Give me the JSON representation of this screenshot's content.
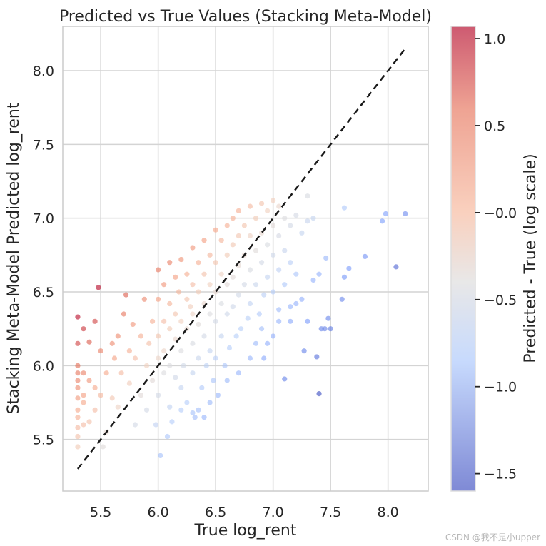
{
  "chart_data": {
    "type": "scatter",
    "title": "Predicted vs True Values (Stacking Meta-Model)",
    "xlabel": "True log_rent",
    "ylabel": "Stacking Meta-Model Predicted log_rent",
    "xlim": [
      5.17,
      8.35
    ],
    "ylim": [
      5.15,
      8.3
    ],
    "x_ticks": [
      5.5,
      6.0,
      6.5,
      7.0,
      7.5,
      8.0
    ],
    "x_tick_labels": [
      "5.5",
      "6.0",
      "6.5",
      "7.0",
      "7.5",
      "8.0"
    ],
    "y_ticks": [
      5.5,
      6.0,
      6.5,
      7.0,
      7.5,
      8.0
    ],
    "y_tick_labels": [
      "5.5",
      "6.0",
      "6.5",
      "7.0",
      "7.5",
      "8.0"
    ],
    "grid": true,
    "colormap": "coolwarm",
    "reference_line": {
      "style": "dashed",
      "color": "#1a1a1a",
      "x": [
        5.3,
        8.15
      ],
      "y": [
        5.3,
        8.15
      ]
    },
    "colorbar": {
      "label": "Predicted - True (log scale)",
      "range": [
        -1.6,
        1.07
      ],
      "ticks": [
        1.0,
        0.5,
        0.0,
        -0.5,
        -1.0,
        -1.5
      ],
      "tick_labels": [
        "1.0",
        "0.5",
        "−0.0",
        "−0.5",
        "−1.0",
        "−1.5"
      ]
    },
    "points": [
      [
        5.3,
        6.33
      ],
      [
        5.3,
        5.95
      ],
      [
        5.3,
        5.85
      ],
      [
        5.3,
        5.78
      ],
      [
        5.3,
        5.65
      ],
      [
        5.3,
        5.58
      ],
      [
        5.3,
        5.52
      ],
      [
        5.3,
        5.45
      ],
      [
        5.3,
        5.9
      ],
      [
        5.3,
        5.7
      ],
      [
        5.3,
        6.15
      ],
      [
        5.3,
        6.0
      ],
      [
        5.35,
        6.25
      ],
      [
        5.35,
        5.95
      ],
      [
        5.35,
        5.8
      ],
      [
        5.35,
        5.75
      ],
      [
        5.35,
        5.6
      ],
      [
        5.4,
        6.16
      ],
      [
        5.4,
        5.9
      ],
      [
        5.4,
        5.62
      ],
      [
        5.45,
        5.85
      ],
      [
        5.45,
        5.7
      ],
      [
        5.48,
        6.53
      ],
      [
        5.45,
        6.3
      ],
      [
        5.5,
        5.8
      ],
      [
        5.5,
        6.1
      ],
      [
        5.52,
        5.45
      ],
      [
        5.55,
        5.55
      ],
      [
        5.55,
        5.95
      ],
      [
        5.6,
        6.15
      ],
      [
        5.6,
        5.78
      ],
      [
        5.62,
        6.05
      ],
      [
        5.65,
        6.2
      ],
      [
        5.65,
        5.72
      ],
      [
        5.68,
        5.95
      ],
      [
        5.7,
        6.35
      ],
      [
        5.72,
        6.48
      ],
      [
        5.75,
        6.1
      ],
      [
        5.75,
        5.88
      ],
      [
        5.78,
        6.28
      ],
      [
        5.8,
        5.6
      ],
      [
        5.8,
        6.05
      ],
      [
        5.85,
        6.2
      ],
      [
        5.85,
        5.8
      ],
      [
        5.88,
        6.45
      ],
      [
        5.9,
        5.7
      ],
      [
        5.9,
        6.0
      ],
      [
        5.92,
        6.15
      ],
      [
        5.95,
        6.3
      ],
      [
        5.95,
        5.9
      ],
      [
        5.98,
        5.6
      ],
      [
        6.0,
        6.65
      ],
      [
        6.0,
        6.45
      ],
      [
        6.0,
        6.2
      ],
      [
        6.0,
        6.05
      ],
      [
        6.0,
        5.8
      ],
      [
        6.02,
        5.39
      ],
      [
        6.05,
        6.55
      ],
      [
        6.05,
        6.3
      ],
      [
        6.05,
        6.1
      ],
      [
        6.05,
        5.95
      ],
      [
        6.08,
        5.52
      ],
      [
        6.1,
        6.7
      ],
      [
        6.1,
        6.42
      ],
      [
        6.1,
        6.25
      ],
      [
        6.1,
        6.0
      ],
      [
        6.1,
        5.72
      ],
      [
        6.12,
        5.62
      ],
      [
        6.15,
        6.6
      ],
      [
        6.15,
        6.35
      ],
      [
        6.15,
        6.18
      ],
      [
        6.15,
        5.92
      ],
      [
        6.18,
        6.5
      ],
      [
        6.2,
        6.72
      ],
      [
        6.2,
        6.3
      ],
      [
        6.2,
        6.1
      ],
      [
        6.2,
        5.85
      ],
      [
        6.22,
        6.0
      ],
      [
        6.25,
        6.62
      ],
      [
        6.25,
        6.45
      ],
      [
        6.25,
        6.25
      ],
      [
        6.25,
        5.75
      ],
      [
        6.28,
        6.4
      ],
      [
        6.3,
        6.8
      ],
      [
        6.3,
        6.55
      ],
      [
        6.3,
        6.35
      ],
      [
        6.3,
        6.15
      ],
      [
        6.3,
        5.95
      ],
      [
        6.32,
        5.65
      ],
      [
        6.35,
        6.7
      ],
      [
        6.35,
        6.5
      ],
      [
        6.35,
        6.28
      ],
      [
        6.35,
        6.05
      ],
      [
        6.38,
        5.85
      ],
      [
        6.4,
        6.85
      ],
      [
        6.4,
        6.62
      ],
      [
        6.4,
        6.42
      ],
      [
        6.4,
        6.2
      ],
      [
        6.42,
        6.0
      ],
      [
        6.45,
        6.75
      ],
      [
        6.45,
        6.55
      ],
      [
        6.45,
        6.35
      ],
      [
        6.45,
        6.1
      ],
      [
        6.48,
        5.9
      ],
      [
        6.5,
        6.92
      ],
      [
        6.5,
        6.7
      ],
      [
        6.5,
        6.5
      ],
      [
        6.5,
        6.3
      ],
      [
        6.5,
        6.05
      ],
      [
        6.52,
        5.8
      ],
      [
        6.55,
        6.85
      ],
      [
        6.55,
        6.62
      ],
      [
        6.55,
        6.42
      ],
      [
        6.55,
        6.2
      ],
      [
        6.58,
        6.0
      ],
      [
        6.6,
        6.95
      ],
      [
        6.6,
        6.75
      ],
      [
        6.6,
        6.55
      ],
      [
        6.6,
        6.35
      ],
      [
        6.62,
        6.12
      ],
      [
        6.65,
        7.0
      ],
      [
        6.65,
        6.82
      ],
      [
        6.65,
        6.6
      ],
      [
        6.65,
        6.4
      ],
      [
        6.68,
        6.2
      ],
      [
        6.7,
        7.05
      ],
      [
        6.7,
        6.88
      ],
      [
        6.7,
        6.68
      ],
      [
        6.7,
        6.48
      ],
      [
        6.72,
        6.25
      ],
      [
        6.75,
        6.95
      ],
      [
        6.75,
        6.75
      ],
      [
        6.75,
        6.55
      ],
      [
        6.78,
        6.32
      ],
      [
        6.8,
        7.08
      ],
      [
        6.8,
        6.88
      ],
      [
        6.8,
        6.65
      ],
      [
        6.8,
        6.42
      ],
      [
        6.85,
        7.0
      ],
      [
        6.85,
        6.78
      ],
      [
        6.85,
        6.55
      ],
      [
        6.88,
        6.35
      ],
      [
        6.9,
        7.1
      ],
      [
        6.9,
        6.9
      ],
      [
        6.9,
        6.7
      ],
      [
        6.92,
        6.48
      ],
      [
        6.95,
        7.05
      ],
      [
        6.95,
        6.82
      ],
      [
        6.95,
        6.6
      ],
      [
        7.0,
        7.12
      ],
      [
        7.0,
        6.95
      ],
      [
        7.0,
        6.75
      ],
      [
        7.0,
        6.5
      ],
      [
        7.05,
        7.08
      ],
      [
        7.05,
        6.88
      ],
      [
        7.05,
        6.65
      ],
      [
        7.1,
        7.0
      ],
      [
        7.1,
        6.78
      ],
      [
        7.1,
        6.55
      ],
      [
        7.15,
        6.95
      ],
      [
        7.15,
        6.7
      ],
      [
        7.2,
        7.02
      ],
      [
        7.2,
        6.62
      ],
      [
        7.25,
        6.9
      ],
      [
        7.3,
        7.15
      ],
      [
        7.3,
        6.98
      ],
      [
        7.35,
        7.0
      ],
      [
        7.2,
        6.42
      ],
      [
        7.15,
        6.3
      ],
      [
        7.05,
        6.3
      ],
      [
        7.0,
        6.2
      ],
      [
        6.9,
        6.25
      ],
      [
        6.95,
        6.15
      ],
      [
        6.85,
        6.15
      ],
      [
        6.8,
        6.05
      ],
      [
        6.7,
        5.95
      ],
      [
        6.6,
        5.9
      ],
      [
        6.45,
        5.75
      ],
      [
        6.35,
        5.7
      ],
      [
        6.3,
        5.68
      ],
      [
        6.2,
        5.7
      ],
      [
        6.4,
        5.65
      ],
      [
        7.1,
        5.91
      ],
      [
        6.92,
        6.05
      ],
      [
        7.25,
        6.45
      ],
      [
        7.3,
        6.3
      ],
      [
        7.38,
        6.06
      ],
      [
        7.42,
        6.25
      ],
      [
        7.45,
        6.25
      ],
      [
        7.4,
        5.81
      ],
      [
        7.5,
        6.25
      ],
      [
        7.48,
        6.32
      ],
      [
        7.46,
        6.73
      ],
      [
        7.4,
        6.62
      ],
      [
        7.35,
        6.58
      ],
      [
        7.6,
        6.45
      ],
      [
        7.62,
        6.6
      ],
      [
        7.66,
        6.66
      ],
      [
        7.8,
        6.74
      ],
      [
        7.95,
        6.98
      ],
      [
        7.98,
        7.03
      ],
      [
        8.15,
        7.03
      ],
      [
        8.07,
        6.67
      ],
      [
        7.62,
        7.07
      ],
      [
        7.27,
        6.1
      ],
      [
        7.15,
        6.4
      ],
      [
        7.05,
        6.38
      ]
    ]
  },
  "watermark": "CSDN @我不是小upper"
}
